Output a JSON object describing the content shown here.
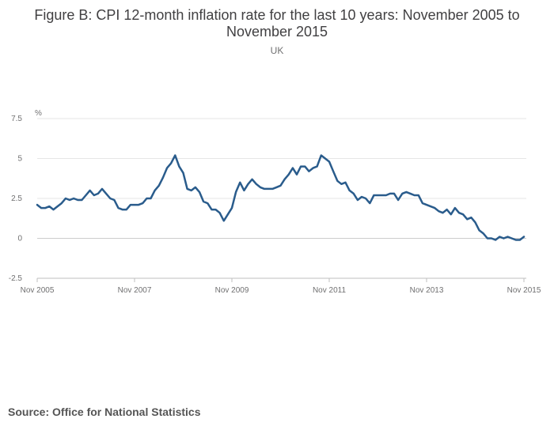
{
  "chart_data": {
    "type": "line",
    "title": "Figure B: CPI 12-month inflation rate for the last 10 years: November 2005 to November 2015",
    "subtitle": "UK",
    "ylabel": "%",
    "ylim": [
      -2.5,
      7.5
    ],
    "yticks": [
      "7.5",
      "5",
      "2.5",
      "0",
      "-2.5"
    ],
    "ytick_values": [
      7.5,
      5,
      2.5,
      0,
      -2.5
    ],
    "xticks": [
      "Nov 2005",
      "Nov 2007",
      "Nov 2009",
      "Nov 2011",
      "Nov 2013",
      "Nov 2015"
    ],
    "x_start": "Nov 2005",
    "x_end": "Nov 2015",
    "grid": true,
    "series": [
      {
        "color": "#2a5c8c",
        "values": [
          2.1,
          1.9,
          1.9,
          2.0,
          1.8,
          2.0,
          2.2,
          2.5,
          2.4,
          2.5,
          2.4,
          2.4,
          2.7,
          3.0,
          2.7,
          2.8,
          3.1,
          2.8,
          2.5,
          2.4,
          1.9,
          1.8,
          1.8,
          2.1,
          2.1,
          2.1,
          2.2,
          2.5,
          2.5,
          3.0,
          3.3,
          3.8,
          4.4,
          4.7,
          5.2,
          4.5,
          4.1,
          3.1,
          3.0,
          3.2,
          2.9,
          2.3,
          2.2,
          1.8,
          1.8,
          1.6,
          1.1,
          1.5,
          1.9,
          2.9,
          3.5,
          3.0,
          3.4,
          3.7,
          3.4,
          3.2,
          3.1,
          3.1,
          3.1,
          3.2,
          3.3,
          3.7,
          4.0,
          4.4,
          4.0,
          4.5,
          4.5,
          4.2,
          4.4,
          4.5,
          5.2,
          5.0,
          4.8,
          4.2,
          3.6,
          3.4,
          3.5,
          3.0,
          2.8,
          2.4,
          2.6,
          2.5,
          2.2,
          2.7,
          2.7,
          2.7,
          2.7,
          2.8,
          2.8,
          2.4,
          2.8,
          2.9,
          2.8,
          2.7,
          2.7,
          2.2,
          2.1,
          2.0,
          1.9,
          1.7,
          1.6,
          1.8,
          1.5,
          1.9,
          1.6,
          1.5,
          1.2,
          1.3,
          1.0,
          0.5,
          0.3,
          0.0,
          0.0,
          -0.1,
          0.1,
          0.0,
          0.1,
          0.0,
          -0.1,
          -0.1,
          0.1
        ]
      }
    ]
  },
  "footer": {
    "source": "Source: Office for National Statistics"
  }
}
